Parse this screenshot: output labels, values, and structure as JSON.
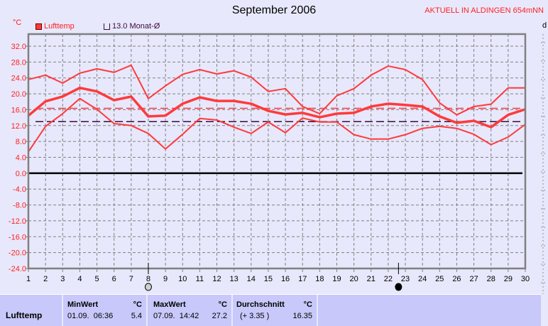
{
  "header": {
    "title": "September 2006",
    "station": "AKTUELL IN ALDINGEN 654mNN",
    "unit_left": "°C",
    "unit_right": "d"
  },
  "legend": [
    {
      "label": "Lufttemp",
      "color": "#ff3a3a",
      "style": "filled"
    },
    {
      "label": "13.0 Monat-Ø",
      "color": "#3c0a3c",
      "style": "outline"
    }
  ],
  "colors": {
    "series": "#ff3a3a",
    "avg_line": "#ff3a3a",
    "monthly_line": "#3c0a3c",
    "background": "#e8e8fc",
    "panel": "#c8c8fa"
  },
  "chart_data": {
    "type": "line",
    "title": "September 2006",
    "ylabel": "°C",
    "xlim": [
      1,
      30
    ],
    "ylim": [
      -24,
      35
    ],
    "grid": true,
    "legend_placement": "top-left",
    "x": [
      1,
      2,
      3,
      4,
      5,
      6,
      7,
      8,
      9,
      10,
      11,
      12,
      13,
      14,
      15,
      16,
      17,
      18,
      19,
      20,
      21,
      22,
      23,
      24,
      25,
      26,
      27,
      28,
      29,
      30
    ],
    "yticks": [
      "32.0",
      "28.0",
      "24.0",
      "20.0",
      "16.0",
      "12.0",
      "8.0",
      "4.0",
      "0.0",
      "-4.0",
      "-8.0",
      "-12.0",
      "-16.0",
      "-20.0",
      "-24.0"
    ],
    "series": [
      {
        "role": "max",
        "values": [
          23.6,
          24.7,
          22.7,
          25.2,
          26.3,
          25.4,
          27.2,
          18.8,
          22.0,
          24.9,
          26.1,
          25.0,
          25.8,
          24.2,
          20.6,
          21.3,
          16.8,
          15.0,
          19.5,
          21.3,
          24.7,
          27.0,
          26.1,
          23.6,
          17.7,
          14.7,
          16.8,
          17.4,
          21.5,
          21.5
        ]
      },
      {
        "role": "mean",
        "values": [
          14.5,
          18.1,
          19.3,
          21.5,
          20.6,
          18.4,
          19.3,
          14.3,
          14.5,
          17.5,
          19.1,
          18.2,
          18.2,
          17.5,
          15.7,
          14.8,
          15.2,
          14.1,
          15.0,
          15.2,
          16.8,
          17.5,
          17.2,
          16.8,
          14.3,
          12.7,
          13.2,
          11.6,
          14.7,
          16.1
        ]
      },
      {
        "role": "min",
        "values": [
          5.4,
          11.8,
          15.0,
          18.8,
          16.1,
          12.5,
          12.0,
          10.0,
          6.1,
          9.8,
          13.8,
          13.4,
          11.6,
          10.0,
          12.9,
          10.2,
          13.9,
          12.9,
          12.9,
          9.7,
          8.6,
          8.6,
          9.7,
          11.3,
          11.8,
          11.3,
          9.8,
          7.2,
          9.1,
          12.3
        ]
      }
    ],
    "reference_lines": [
      {
        "value": 16.35,
        "color": "#ff3a3a",
        "style": "dashed"
      },
      {
        "value": 13.0,
        "color": "#3c0a3c",
        "style": "dashed"
      },
      {
        "value": 0.0,
        "color": "#000000",
        "style": "solid"
      }
    ],
    "moon_phases": [
      {
        "day": 8,
        "phase": "full-moon"
      },
      {
        "day": 22.6,
        "phase": "new-moon"
      }
    ]
  },
  "stats": {
    "row_label": "Lufttemp",
    "min": {
      "header": "MinWert",
      "unit": "°C",
      "time": "01.09.  06:36",
      "value": "5.4"
    },
    "max": {
      "header": "MaxWert",
      "unit": "°C",
      "time": "07.09.  14:42",
      "value": "27.2"
    },
    "avg": {
      "header": "Durchschnitt",
      "unit": "°C",
      "delta": "(+ 3.35 )",
      "value": "16.35"
    }
  }
}
